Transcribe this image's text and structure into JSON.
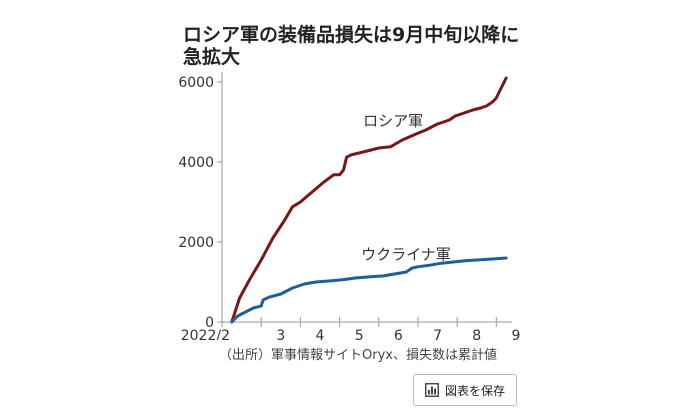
{
  "title": "ロシア軍の装備品損失は9月中旬以降に急拡大",
  "source": "（出所）軍事情報サイトOryx、損失数は累計値",
  "save_button": {
    "label": "図表を保存",
    "icon": "bar-chart-icon"
  },
  "chart_data": {
    "type": "line",
    "xlabel": "",
    "ylabel": "",
    "x_ticks": [
      "2022/2",
      "3",
      "4",
      "5",
      "6",
      "7",
      "8",
      "9"
    ],
    "xlim": [
      0,
      7.4
    ],
    "ylim": [
      0,
      6000
    ],
    "y_ticks": [
      0,
      2000,
      4000,
      6000
    ],
    "grid": false,
    "series": [
      {
        "name": "ロシア軍",
        "color": "#7a1518",
        "x": [
          0.25,
          0.45,
          0.7,
          1.0,
          1.3,
          1.6,
          1.8,
          2.0,
          2.3,
          2.6,
          2.85,
          3.0,
          3.1,
          3.18,
          3.3,
          3.6,
          4.0,
          4.3,
          4.6,
          4.95,
          5.2,
          5.5,
          5.8,
          5.95,
          6.1,
          6.4,
          6.6,
          6.75,
          6.9,
          7.0,
          7.1,
          7.2,
          7.25
        ],
        "y": [
          0,
          600,
          1050,
          1550,
          2100,
          2550,
          2880,
          3000,
          3250,
          3500,
          3680,
          3680,
          3800,
          4120,
          4180,
          4250,
          4350,
          4380,
          4550,
          4700,
          4800,
          4950,
          5050,
          5150,
          5200,
          5300,
          5350,
          5400,
          5500,
          5600,
          5800,
          6000,
          6100
        ]
      },
      {
        "name": "ウクライナ軍",
        "color": "#1d5e9c",
        "x": [
          0.25,
          0.4,
          0.6,
          0.8,
          1.0,
          1.05,
          1.2,
          1.5,
          1.8,
          2.1,
          2.4,
          2.8,
          3.1,
          3.4,
          3.8,
          4.1,
          4.4,
          4.7,
          4.85,
          5.0,
          5.3,
          5.6,
          5.9,
          6.2,
          6.5,
          6.8,
          7.0,
          7.25
        ],
        "y": [
          0,
          150,
          250,
          350,
          400,
          550,
          620,
          700,
          850,
          950,
          1000,
          1030,
          1060,
          1100,
          1130,
          1150,
          1200,
          1250,
          1350,
          1380,
          1420,
          1470,
          1500,
          1530,
          1550,
          1570,
          1580,
          1600
        ]
      }
    ],
    "annotations": [
      {
        "text": "ロシア軍",
        "x": 3.6,
        "y": 4900
      },
      {
        "text": "ウクライナ軍",
        "x": 3.55,
        "y": 1560
      }
    ]
  }
}
